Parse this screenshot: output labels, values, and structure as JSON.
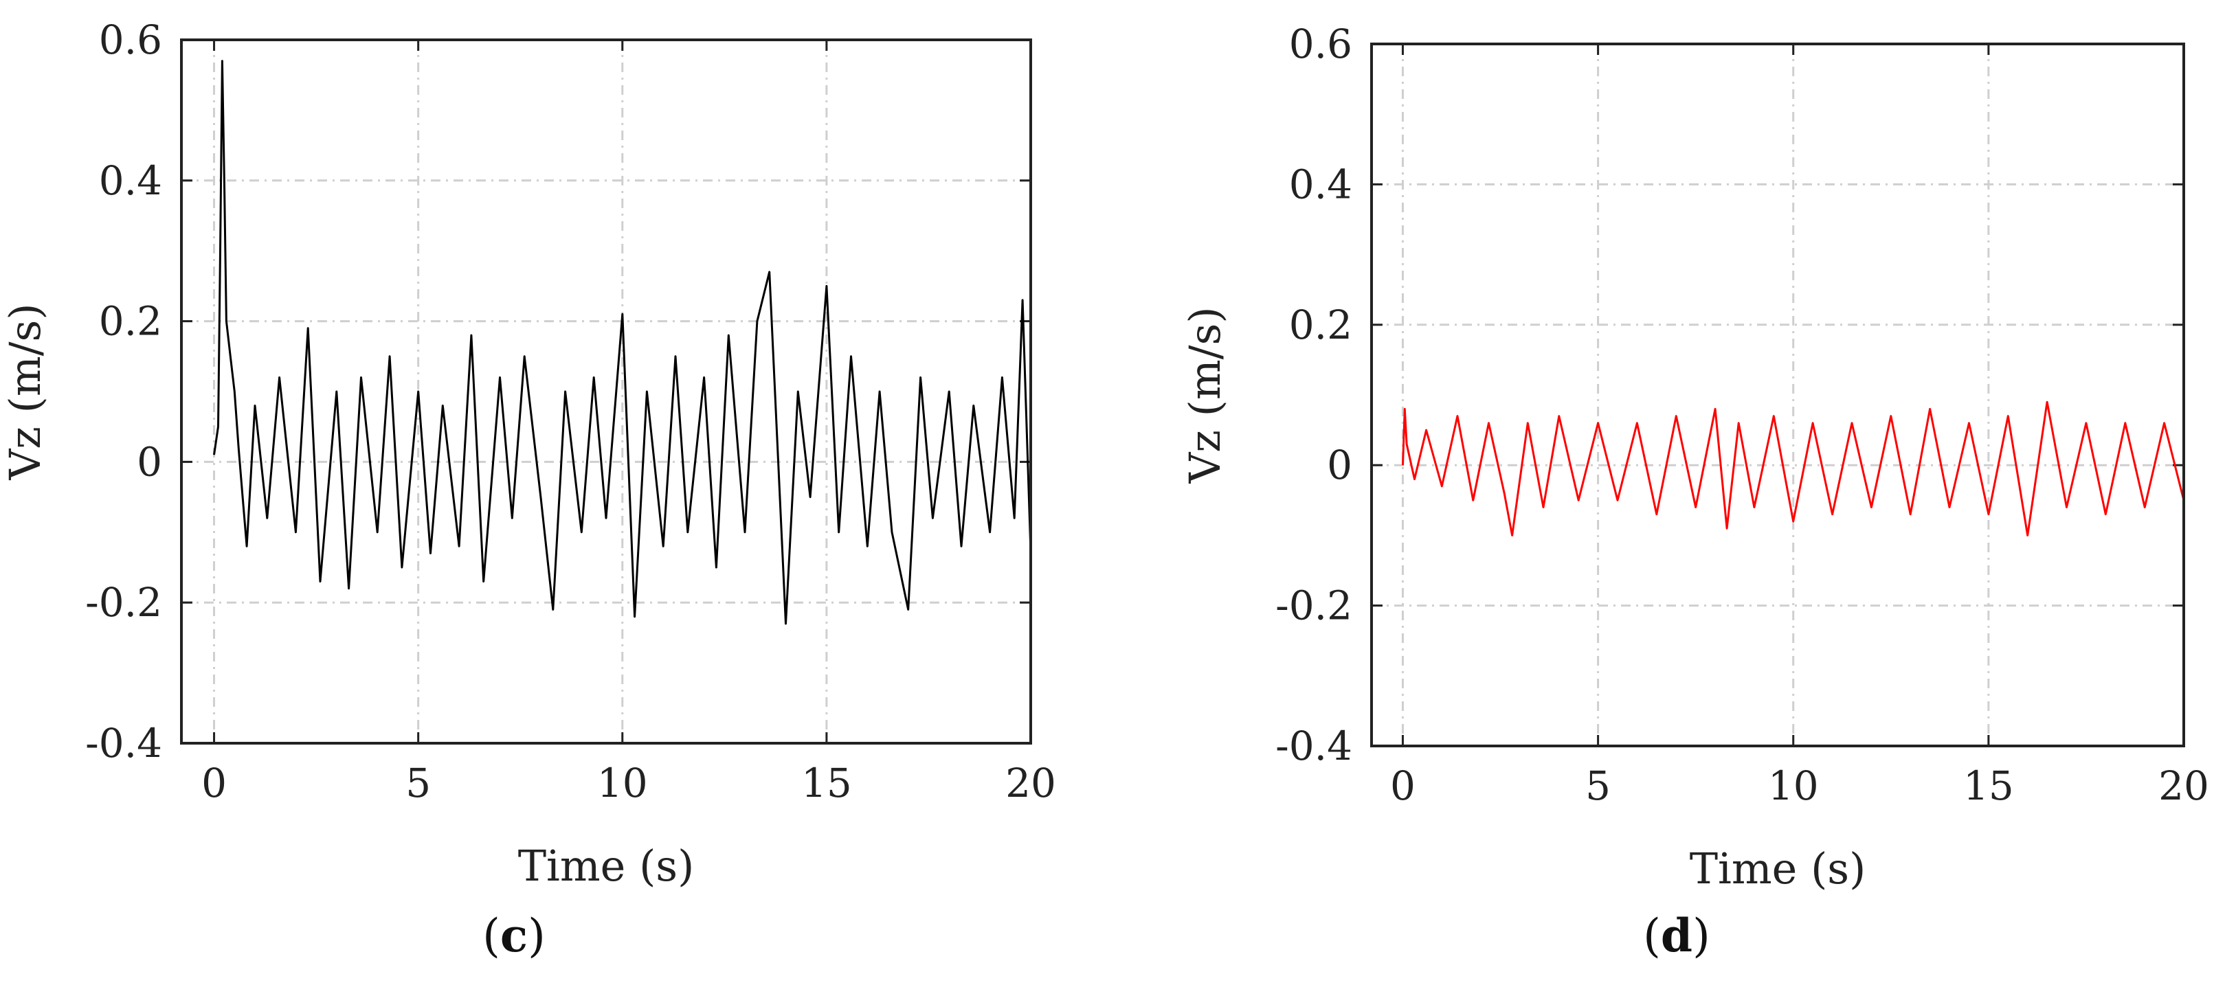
{
  "chart_data": [
    {
      "panel": "(c)",
      "panel_letter": "c",
      "type": "line",
      "xlabel": "Time (s)",
      "ylabel": "Vz (m/s)",
      "xlim": [
        -0.8,
        20
      ],
      "ylim": [
        -0.4,
        0.6
      ],
      "xticks": [
        "0",
        "5",
        "10",
        "15",
        "20"
      ],
      "yticks": [
        "-0.4",
        "-0.2",
        "0",
        "0.2",
        "0.4",
        "0.6"
      ],
      "grid": true,
      "line_color": "#000000",
      "series": [
        {
          "x": [
            0.0,
            0.1,
            0.15,
            0.2,
            0.25,
            0.3,
            0.4,
            0.5,
            0.6,
            0.7,
            0.8,
            1.0,
            1.3,
            1.6,
            2.0,
            2.3,
            2.6,
            3.0,
            3.3,
            3.6,
            4.0,
            4.3,
            4.6,
            5.0,
            5.3,
            5.6,
            6.0,
            6.3,
            6.6,
            7.0,
            7.3,
            7.6,
            8.0,
            8.3,
            8.6,
            9.0,
            9.3,
            9.6,
            10.0,
            10.3,
            10.6,
            11.0,
            11.3,
            11.6,
            12.0,
            12.3,
            12.6,
            13.0,
            13.3,
            13.6,
            14.0,
            14.3,
            14.6,
            15.0,
            15.3,
            15.6,
            16.0,
            16.3,
            16.6,
            17.0,
            17.3,
            17.6,
            18.0,
            18.3,
            18.6,
            19.0,
            19.3,
            19.6,
            19.8,
            20.0
          ],
          "y": [
            0.01,
            0.05,
            0.3,
            0.57,
            0.4,
            0.2,
            0.15,
            0.1,
            0.02,
            -0.05,
            -0.12,
            0.08,
            -0.08,
            0.12,
            -0.1,
            0.19,
            -0.17,
            0.1,
            -0.18,
            0.12,
            -0.1,
            0.15,
            -0.15,
            0.1,
            -0.13,
            0.08,
            -0.12,
            0.18,
            -0.17,
            0.12,
            -0.08,
            0.15,
            -0.05,
            -0.21,
            0.1,
            -0.1,
            0.12,
            -0.08,
            0.21,
            -0.22,
            0.1,
            -0.12,
            0.15,
            -0.1,
            0.12,
            -0.15,
            0.18,
            -0.1,
            0.2,
            0.27,
            -0.23,
            0.1,
            -0.05,
            0.25,
            -0.1,
            0.15,
            -0.12,
            0.1,
            -0.1,
            -0.21,
            0.12,
            -0.08,
            0.1,
            -0.12,
            0.08,
            -0.1,
            0.12,
            -0.08,
            0.23,
            -0.13
          ]
        }
      ]
    },
    {
      "panel": "(d)",
      "panel_letter": "d",
      "type": "line",
      "xlabel": "Time (s)",
      "ylabel": "Vz (m/s)",
      "xlim": [
        -0.8,
        20
      ],
      "ylim": [
        -0.4,
        0.6
      ],
      "xticks": [
        "0",
        "5",
        "10",
        "15",
        "20"
      ],
      "yticks": [
        "-0.4",
        "-0.2",
        "0",
        "0.2",
        "0.4",
        "0.6"
      ],
      "grid": true,
      "line_color": "#ff0000",
      "series": [
        {
          "x": [
            0.0,
            0.05,
            0.1,
            0.3,
            0.6,
            1.0,
            1.4,
            1.8,
            2.2,
            2.6,
            2.8,
            3.2,
            3.6,
            4.0,
            4.5,
            5.0,
            5.5,
            6.0,
            6.5,
            7.0,
            7.5,
            8.0,
            8.3,
            8.6,
            9.0,
            9.5,
            10.0,
            10.5,
            11.0,
            11.5,
            12.0,
            12.5,
            13.0,
            13.5,
            14.0,
            14.5,
            15.0,
            15.5,
            16.0,
            16.5,
            17.0,
            17.5,
            18.0,
            18.5,
            19.0,
            19.5,
            20.0
          ],
          "y": [
            0.0,
            0.08,
            0.03,
            -0.02,
            0.05,
            -0.03,
            0.07,
            -0.05,
            0.06,
            -0.04,
            -0.1,
            0.06,
            -0.06,
            0.07,
            -0.05,
            0.06,
            -0.05,
            0.06,
            -0.07,
            0.07,
            -0.06,
            0.08,
            -0.09,
            0.06,
            -0.06,
            0.07,
            -0.08,
            0.06,
            -0.07,
            0.06,
            -0.06,
            0.07,
            -0.07,
            0.08,
            -0.06,
            0.06,
            -0.07,
            0.07,
            -0.1,
            0.09,
            -0.06,
            0.06,
            -0.07,
            0.06,
            -0.06,
            0.06,
            -0.05
          ]
        }
      ]
    }
  ]
}
